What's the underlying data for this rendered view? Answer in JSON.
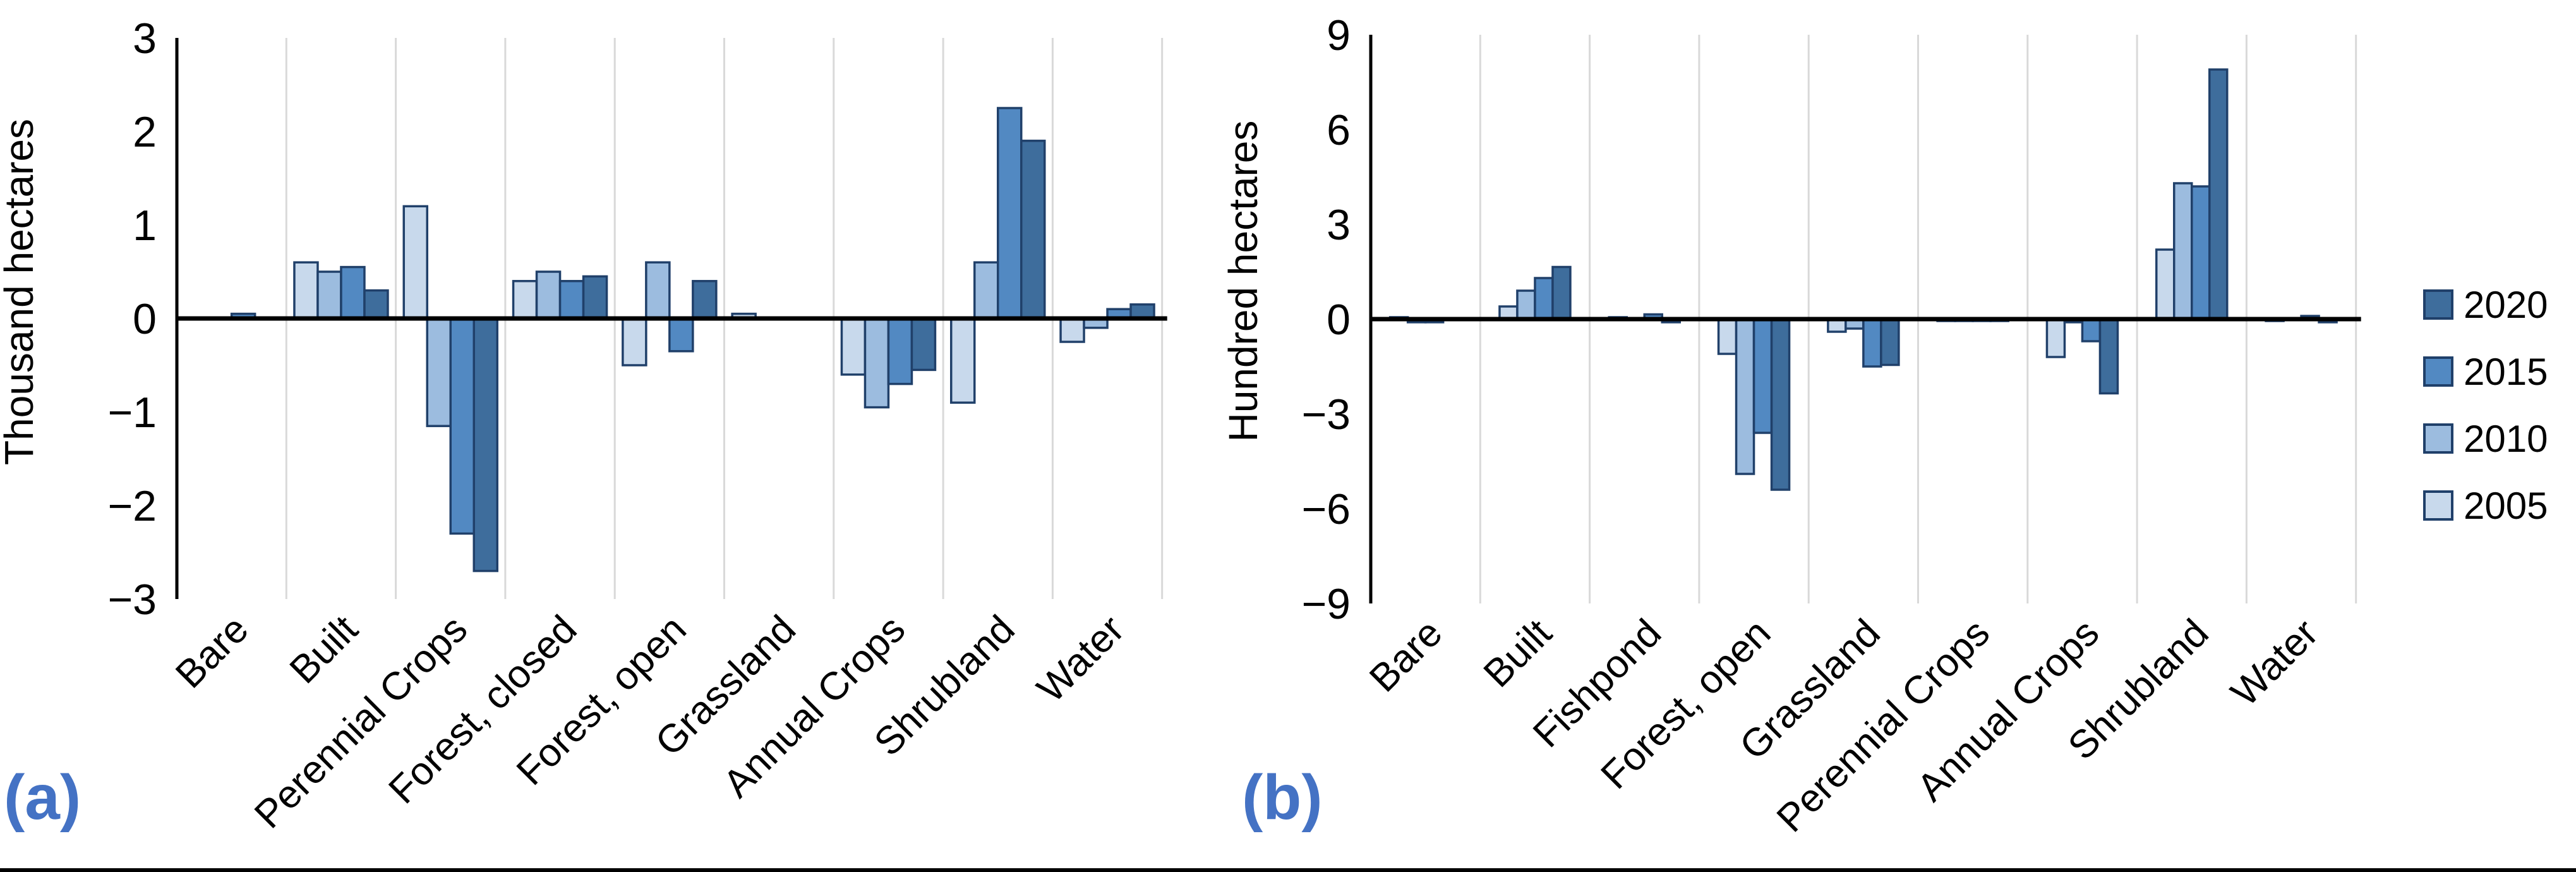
{
  "figure": {
    "panel_a_label": "(a)",
    "panel_b_label": "(b)"
  },
  "colors": {
    "bar_outline": "#20406a",
    "gridline": "#d9d9d9",
    "axis": "#000000",
    "panel_label_blue": "#4472c4",
    "year_2020": "#3e6d9c",
    "year_2015": "#5289c2",
    "year_2010": "#9cbcdf",
    "year_2005": "#c8d9ec"
  },
  "legend": {
    "position": "right",
    "items": [
      {
        "label": "2020",
        "color": "#3e6d9c"
      },
      {
        "label": "2015",
        "color": "#5289c2"
      },
      {
        "label": "2010",
        "color": "#9cbcdf"
      },
      {
        "label": "2005",
        "color": "#c8d9ec"
      }
    ]
  },
  "chart_data": [
    {
      "type": "bar",
      "panel": "a",
      "title": "",
      "xlabel": "",
      "ylabel": "Thousand hectares",
      "ylim": [
        -3,
        3
      ],
      "grid": "vertical-only",
      "ytick_values": [
        3,
        2,
        1,
        0,
        -1,
        -2,
        -3
      ],
      "ytick_labels": [
        "3",
        "2",
        "1",
        "0",
        "−1",
        "−2",
        "−3"
      ],
      "categories": [
        "Bare",
        "Built",
        "Perennial Crops",
        "Forest, closed",
        "Forest, open",
        "Grassland",
        "Annual Crops",
        "Shrubland",
        "Water"
      ],
      "series": [
        {
          "name": "2005",
          "color": "#c8d9ec",
          "values": [
            0,
            0.6,
            1.2,
            0.4,
            -0.5,
            0.05,
            -0.6,
            -0.9,
            -0.25
          ]
        },
        {
          "name": "2010",
          "color": "#9cbcdf",
          "values": [
            0,
            0.5,
            -1.15,
            0.5,
            0.6,
            0,
            -0.95,
            0.6,
            -0.1
          ]
        },
        {
          "name": "2015",
          "color": "#5289c2",
          "values": [
            0.05,
            0.55,
            -2.3,
            0.4,
            -0.35,
            0,
            -0.7,
            2.25,
            0.1
          ]
        },
        {
          "name": "2020",
          "color": "#3e6d9c",
          "values": [
            0,
            0.3,
            -2.7,
            0.45,
            0.4,
            0,
            -0.55,
            1.9,
            0.15
          ]
        }
      ]
    },
    {
      "type": "bar",
      "panel": "b",
      "title": "",
      "xlabel": "",
      "ylabel": "Hundred hectares",
      "ylim": [
        -9,
        9
      ],
      "grid": "vertical-only",
      "ytick_values": [
        9,
        6,
        3,
        0,
        -3,
        -6,
        -9
      ],
      "ytick_labels": [
        "9",
        "6",
        "3",
        "0",
        "−3",
        "−6",
        "−9"
      ],
      "categories": [
        "Bare",
        "Built",
        "Fishpond",
        "Forest, open",
        "Grassland",
        "Perennial Crops",
        "Annual Crops",
        "Shrubland",
        "Water"
      ],
      "series": [
        {
          "name": "2005",
          "color": "#c8d9ec",
          "values": [
            0.05,
            0.4,
            0.05,
            -1.1,
            -0.4,
            -0.05,
            -1.2,
            2.2,
            -0.05
          ]
        },
        {
          "name": "2010",
          "color": "#9cbcdf",
          "values": [
            -0.1,
            0.9,
            0,
            -4.9,
            -0.3,
            -0.05,
            -0.1,
            4.3,
            0
          ]
        },
        {
          "name": "2015",
          "color": "#5289c2",
          "values": [
            -0.1,
            1.3,
            0.15,
            -3.6,
            -1.5,
            -0.05,
            -0.7,
            4.2,
            0.1
          ]
        },
        {
          "name": "2020",
          "color": "#3e6d9c",
          "values": [
            0,
            1.65,
            -0.1,
            -5.4,
            -1.45,
            -0.05,
            -2.35,
            7.9,
            -0.1
          ]
        }
      ]
    }
  ]
}
